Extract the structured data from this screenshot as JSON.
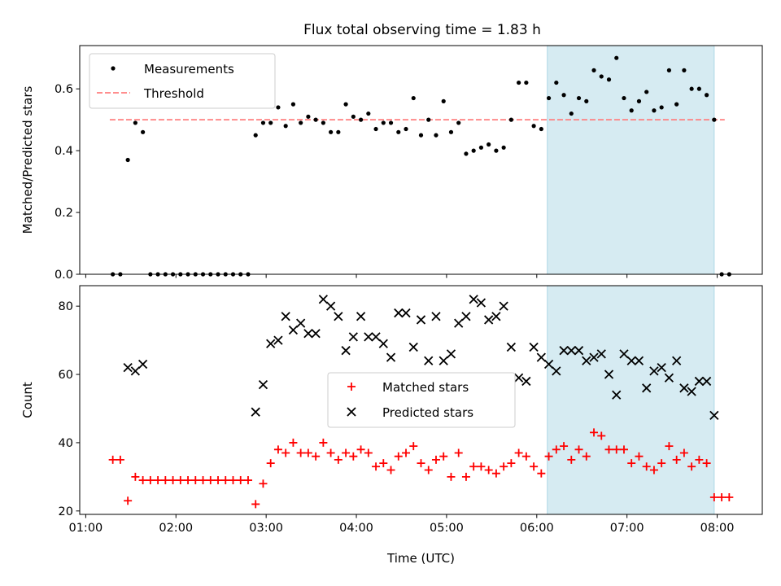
{
  "title": "Flux total observing time = 1.83 h",
  "colors": {
    "measurement": "#000000",
    "threshold": "#ff7f7f",
    "matched": "#ff0000",
    "predicted": "#000000",
    "highlight_fill": "#add8e6",
    "axes": "#000000"
  },
  "chart_data": [
    {
      "type": "scatter",
      "ylabel": "Matched/Predicted stars",
      "xlim": [
        "00:56",
        "08:30"
      ],
      "ylim": [
        0,
        0.74
      ],
      "grid": false,
      "legend_position": "top-left",
      "highlight_span": {
        "x_start": "06:07",
        "x_end": "07:58"
      },
      "x_ticks": [
        "01:00",
        "02:00",
        "03:00",
        "04:00",
        "05:00",
        "06:00",
        "07:00",
        "08:00"
      ],
      "y_ticks": [
        "0.0",
        "0.2",
        "0.4",
        "0.6"
      ],
      "legend": [
        "Measurements",
        "Threshold"
      ],
      "threshold": {
        "value": 0.5,
        "x_start": "01:16",
        "x_end": "08:05"
      },
      "series": [
        {
          "name": "Measurements",
          "marker": "dot",
          "points": [
            [
              "01:18",
              0.0
            ],
            [
              "01:23",
              0.0
            ],
            [
              "01:28",
              0.37
            ],
            [
              "01:33",
              0.49
            ],
            [
              "01:38",
              0.46
            ],
            [
              "01:43",
              0.0
            ],
            [
              "01:48",
              0.0
            ],
            [
              "01:53",
              0.0
            ],
            [
              "01:58",
              0.0
            ],
            [
              "02:03",
              0.0
            ],
            [
              "02:08",
              0.0
            ],
            [
              "02:13",
              0.0
            ],
            [
              "02:18",
              0.0
            ],
            [
              "02:23",
              0.0
            ],
            [
              "02:28",
              0.0
            ],
            [
              "02:33",
              0.0
            ],
            [
              "02:38",
              0.0
            ],
            [
              "02:43",
              0.0
            ],
            [
              "02:48",
              0.0
            ],
            [
              "02:53",
              0.45
            ],
            [
              "02:58",
              0.49
            ],
            [
              "03:03",
              0.49
            ],
            [
              "03:08",
              0.54
            ],
            [
              "03:13",
              0.48
            ],
            [
              "03:18",
              0.55
            ],
            [
              "03:23",
              0.49
            ],
            [
              "03:28",
              0.51
            ],
            [
              "03:33",
              0.5
            ],
            [
              "03:38",
              0.49
            ],
            [
              "03:43",
              0.46
            ],
            [
              "03:48",
              0.46
            ],
            [
              "03:53",
              0.55
            ],
            [
              "03:58",
              0.51
            ],
            [
              "04:03",
              0.5
            ],
            [
              "04:08",
              0.52
            ],
            [
              "04:13",
              0.47
            ],
            [
              "04:18",
              0.49
            ],
            [
              "04:23",
              0.49
            ],
            [
              "04:28",
              0.46
            ],
            [
              "04:33",
              0.47
            ],
            [
              "04:38",
              0.57
            ],
            [
              "04:43",
              0.45
            ],
            [
              "04:48",
              0.5
            ],
            [
              "04:53",
              0.45
            ],
            [
              "04:58",
              0.56
            ],
            [
              "05:03",
              0.46
            ],
            [
              "05:08",
              0.49
            ],
            [
              "05:13",
              0.39
            ],
            [
              "05:18",
              0.4
            ],
            [
              "05:23",
              0.41
            ],
            [
              "05:28",
              0.42
            ],
            [
              "05:33",
              0.4
            ],
            [
              "05:38",
              0.41
            ],
            [
              "05:43",
              0.5
            ],
            [
              "05:48",
              0.62
            ],
            [
              "05:53",
              0.62
            ],
            [
              "05:58",
              0.48
            ],
            [
              "06:03",
              0.47
            ],
            [
              "06:08",
              0.57
            ],
            [
              "06:13",
              0.62
            ],
            [
              "06:18",
              0.58
            ],
            [
              "06:23",
              0.52
            ],
            [
              "06:28",
              0.57
            ],
            [
              "06:33",
              0.56
            ],
            [
              "06:38",
              0.66
            ],
            [
              "06:43",
              0.64
            ],
            [
              "06:48",
              0.63
            ],
            [
              "06:53",
              0.7
            ],
            [
              "06:58",
              0.57
            ],
            [
              "07:03",
              0.53
            ],
            [
              "07:08",
              0.56
            ],
            [
              "07:13",
              0.59
            ],
            [
              "07:18",
              0.53
            ],
            [
              "07:23",
              0.54
            ],
            [
              "07:28",
              0.66
            ],
            [
              "07:33",
              0.55
            ],
            [
              "07:38",
              0.66
            ],
            [
              "07:43",
              0.6
            ],
            [
              "07:48",
              0.6
            ],
            [
              "07:53",
              0.58
            ],
            [
              "07:58",
              0.5
            ],
            [
              "08:03",
              0.0
            ],
            [
              "08:08",
              0.0
            ]
          ]
        }
      ]
    },
    {
      "type": "scatter",
      "xlabel": "Time (UTC)",
      "ylabel": "Count",
      "xlim": [
        "00:56",
        "08:30"
      ],
      "ylim": [
        19,
        86
      ],
      "grid": false,
      "legend_position": "center",
      "highlight_span": {
        "x_start": "06:07",
        "x_end": "07:58"
      },
      "x_ticks": [
        "01:00",
        "02:00",
        "03:00",
        "04:00",
        "05:00",
        "06:00",
        "07:00",
        "08:00"
      ],
      "y_ticks": [
        "20",
        "40",
        "60",
        "80"
      ],
      "legend": [
        "Matched stars",
        "Predicted stars"
      ],
      "series": [
        {
          "name": "Matched stars",
          "marker": "plus",
          "points": [
            [
              "01:18",
              35
            ],
            [
              "01:23",
              35
            ],
            [
              "01:28",
              23
            ],
            [
              "01:33",
              30
            ],
            [
              "01:38",
              29
            ],
            [
              "01:43",
              29
            ],
            [
              "01:48",
              29
            ],
            [
              "01:53",
              29
            ],
            [
              "01:58",
              29
            ],
            [
              "02:03",
              29
            ],
            [
              "02:08",
              29
            ],
            [
              "02:13",
              29
            ],
            [
              "02:18",
              29
            ],
            [
              "02:23",
              29
            ],
            [
              "02:28",
              29
            ],
            [
              "02:33",
              29
            ],
            [
              "02:38",
              29
            ],
            [
              "02:43",
              29
            ],
            [
              "02:48",
              29
            ],
            [
              "02:53",
              22
            ],
            [
              "02:58",
              28
            ],
            [
              "03:03",
              34
            ],
            [
              "03:08",
              38
            ],
            [
              "03:13",
              37
            ],
            [
              "03:18",
              40
            ],
            [
              "03:23",
              37
            ],
            [
              "03:28",
              37
            ],
            [
              "03:33",
              36
            ],
            [
              "03:38",
              40
            ],
            [
              "03:43",
              37
            ],
            [
              "03:48",
              35
            ],
            [
              "03:53",
              37
            ],
            [
              "03:58",
              36
            ],
            [
              "04:03",
              38
            ],
            [
              "04:08",
              37
            ],
            [
              "04:13",
              33
            ],
            [
              "04:18",
              34
            ],
            [
              "04:23",
              32
            ],
            [
              "04:28",
              36
            ],
            [
              "04:33",
              37
            ],
            [
              "04:38",
              39
            ],
            [
              "04:43",
              34
            ],
            [
              "04:48",
              32
            ],
            [
              "04:53",
              35
            ],
            [
              "04:58",
              36
            ],
            [
              "05:03",
              30
            ],
            [
              "05:08",
              37
            ],
            [
              "05:13",
              30
            ],
            [
              "05:18",
              33
            ],
            [
              "05:23",
              33
            ],
            [
              "05:28",
              32
            ],
            [
              "05:33",
              31
            ],
            [
              "05:38",
              33
            ],
            [
              "05:43",
              34
            ],
            [
              "05:48",
              37
            ],
            [
              "05:53",
              36
            ],
            [
              "05:58",
              33
            ],
            [
              "06:03",
              31
            ],
            [
              "06:08",
              36
            ],
            [
              "06:13",
              38
            ],
            [
              "06:18",
              39
            ],
            [
              "06:23",
              35
            ],
            [
              "06:28",
              38
            ],
            [
              "06:33",
              36
            ],
            [
              "06:38",
              43
            ],
            [
              "06:43",
              42
            ],
            [
              "06:48",
              38
            ],
            [
              "06:53",
              38
            ],
            [
              "06:58",
              38
            ],
            [
              "07:03",
              34
            ],
            [
              "07:08",
              36
            ],
            [
              "07:13",
              33
            ],
            [
              "07:18",
              32
            ],
            [
              "07:23",
              34
            ],
            [
              "07:28",
              39
            ],
            [
              "07:33",
              35
            ],
            [
              "07:38",
              37
            ],
            [
              "07:43",
              33
            ],
            [
              "07:48",
              35
            ],
            [
              "07:53",
              34
            ],
            [
              "07:58",
              24
            ],
            [
              "08:03",
              24
            ],
            [
              "08:08",
              24
            ]
          ]
        },
        {
          "name": "Predicted stars",
          "marker": "x",
          "points": [
            [
              "01:28",
              62
            ],
            [
              "01:33",
              61
            ],
            [
              "01:38",
              63
            ],
            [
              "02:53",
              49
            ],
            [
              "02:58",
              57
            ],
            [
              "03:03",
              69
            ],
            [
              "03:08",
              70
            ],
            [
              "03:13",
              77
            ],
            [
              "03:18",
              73
            ],
            [
              "03:23",
              75
            ],
            [
              "03:28",
              72
            ],
            [
              "03:33",
              72
            ],
            [
              "03:38",
              82
            ],
            [
              "03:43",
              80
            ],
            [
              "03:48",
              77
            ],
            [
              "03:53",
              67
            ],
            [
              "03:58",
              71
            ],
            [
              "04:03",
              77
            ],
            [
              "04:08",
              71
            ],
            [
              "04:13",
              71
            ],
            [
              "04:18",
              69
            ],
            [
              "04:23",
              65
            ],
            [
              "04:28",
              78
            ],
            [
              "04:33",
              78
            ],
            [
              "04:38",
              68
            ],
            [
              "04:43",
              76
            ],
            [
              "04:48",
              64
            ],
            [
              "04:53",
              77
            ],
            [
              "04:58",
              64
            ],
            [
              "05:03",
              66
            ],
            [
              "05:08",
              75
            ],
            [
              "05:13",
              77
            ],
            [
              "05:18",
              82
            ],
            [
              "05:23",
              81
            ],
            [
              "05:28",
              76
            ],
            [
              "05:33",
              77
            ],
            [
              "05:38",
              80
            ],
            [
              "05:43",
              68
            ],
            [
              "05:48",
              59
            ],
            [
              "05:53",
              58
            ],
            [
              "05:58",
              68
            ],
            [
              "06:03",
              65
            ],
            [
              "06:08",
              63
            ],
            [
              "06:13",
              61
            ],
            [
              "06:18",
              67
            ],
            [
              "06:23",
              67
            ],
            [
              "06:28",
              67
            ],
            [
              "06:33",
              64
            ],
            [
              "06:38",
              65
            ],
            [
              "06:43",
              66
            ],
            [
              "06:48",
              60
            ],
            [
              "06:53",
              54
            ],
            [
              "06:58",
              66
            ],
            [
              "07:03",
              64
            ],
            [
              "07:08",
              64
            ],
            [
              "07:13",
              56
            ],
            [
              "07:18",
              61
            ],
            [
              "07:23",
              62
            ],
            [
              "07:28",
              59
            ],
            [
              "07:33",
              64
            ],
            [
              "07:38",
              56
            ],
            [
              "07:43",
              55
            ],
            [
              "07:48",
              58
            ],
            [
              "07:53",
              58
            ],
            [
              "07:58",
              48
            ]
          ]
        }
      ]
    }
  ]
}
